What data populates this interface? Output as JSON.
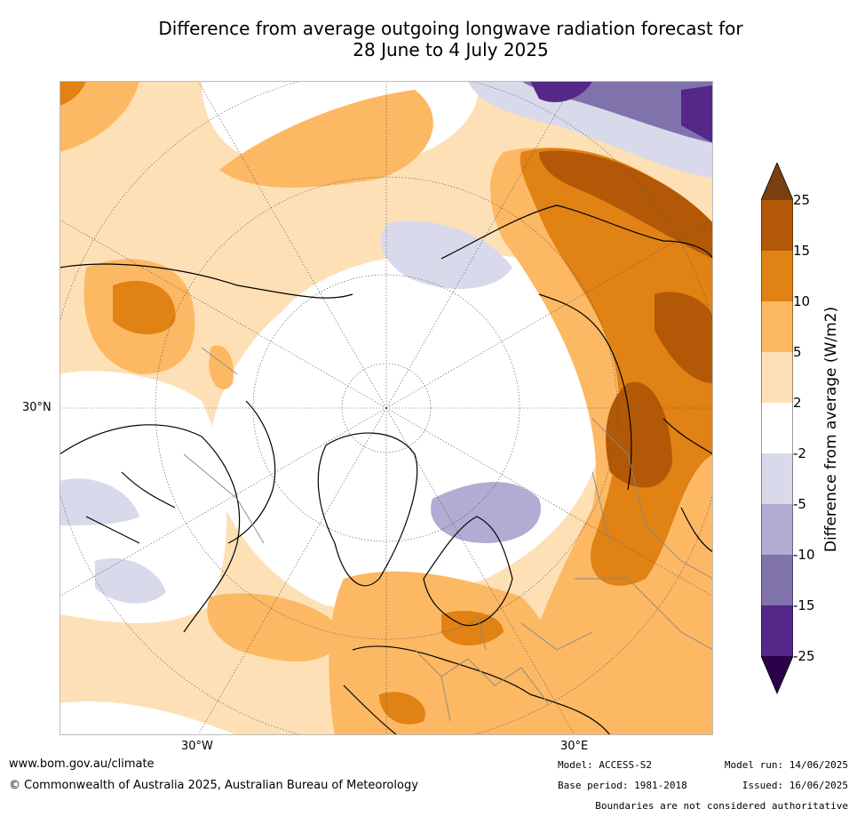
{
  "title_line1": "Difference from average outgoing longwave radiation forecast for",
  "title_line2": "28 June to 4 July 2025",
  "map_labels": {
    "lat_30n": "30°N",
    "lon_30w": "30°W",
    "lon_30e": "30°E"
  },
  "colorbar": {
    "title": "Difference from average (W/m2)",
    "ticks": [
      "25",
      "15",
      "10",
      "5",
      "2",
      "-2",
      "-5",
      "-10",
      "-15",
      "-25"
    ],
    "colors": {
      "above_25": "#7a3f0e",
      "15_to_25": "#b35806",
      "10_to_15": "#e08214",
      "5_to_10": "#fdb863",
      "2_to_5": "#fee0b6",
      "-2_to_2": "#ffffff",
      "-5_to_-2": "#d8daeb",
      "-10_to_-5": "#b2abd2",
      "-15_to_-10": "#8073ac",
      "-25_to_-15": "#542788",
      "below_-25": "#2d004b"
    }
  },
  "footer": {
    "url": "www.bom.gov.au/climate",
    "copyright": "© Commonwealth of Australia 2025, Australian Bureau of Meteorology",
    "model": "Model: ACCESS-S2",
    "base_period": "Base period: 1981-2018",
    "model_run": "Model run: 14/06/2025",
    "issued": "Issued: 16/06/2025",
    "disclaimer": "Boundaries are not considered authoritative"
  }
}
